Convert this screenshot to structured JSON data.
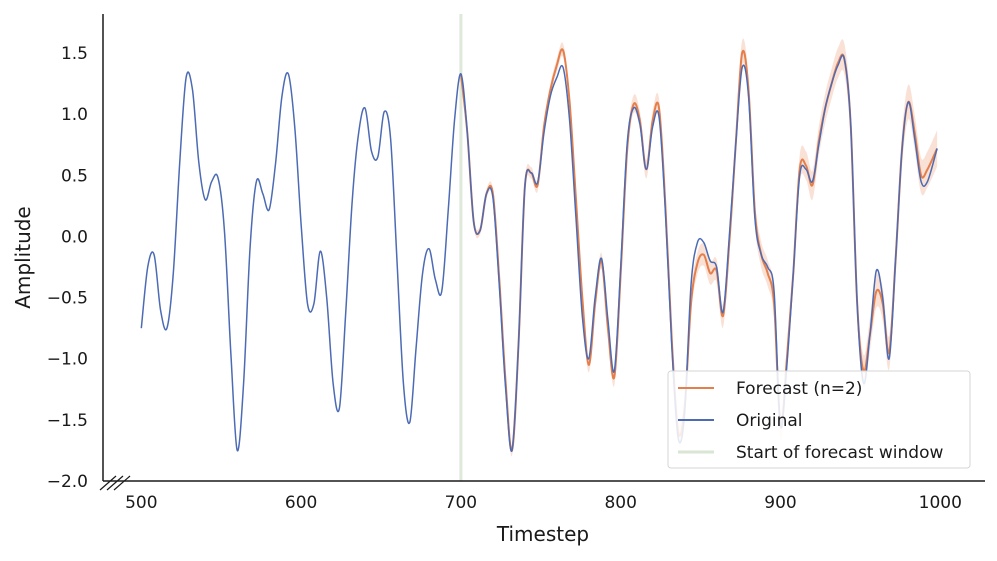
{
  "chart_data": {
    "type": "line",
    "xlabel": "Timestep",
    "ylabel": "Amplitude",
    "xlim": [
      476,
      1028
    ],
    "ylim": [
      -2.0,
      1.82
    ],
    "xticks": [
      500,
      600,
      700,
      800,
      900,
      1000
    ],
    "yticks": [
      1.5,
      1.0,
      0.5,
      0.0,
      -0.5,
      -1.0,
      -1.5,
      -2.0
    ],
    "ytick_labels": [
      "1.5",
      "1.0",
      "0.5",
      "0.0",
      "−0.5",
      "−1.0",
      "−1.5",
      "−2.0"
    ],
    "legend_position": "lower-right",
    "grid": false,
    "forecast_start": 700,
    "series": [
      {
        "name": "Forecast (n=2)",
        "color": "#e47f4c",
        "band_color": "#f6c9b3",
        "x": [
          700,
          704,
          708,
          712,
          716,
          720,
          724,
          728,
          732,
          736,
          740,
          744,
          748,
          752,
          756,
          760,
          764,
          768,
          772,
          776,
          780,
          784,
          788,
          792,
          796,
          800,
          804,
          808,
          812,
          816,
          820,
          824,
          828,
          832,
          836,
          840,
          844,
          848,
          852,
          856,
          860,
          864,
          868,
          872,
          876,
          880,
          884,
          888,
          892,
          896,
          900,
          904,
          908,
          912,
          916,
          920,
          924,
          928,
          932,
          936,
          940,
          944,
          948,
          952,
          956,
          960,
          964,
          968,
          972,
          976,
          980,
          984,
          988,
          992,
          998
        ],
        "y": [
          1.33,
          0.85,
          0.12,
          0.05,
          0.35,
          0.35,
          -0.35,
          -1.2,
          -1.75,
          -0.9,
          0.4,
          0.52,
          0.42,
          0.9,
          1.2,
          1.4,
          1.52,
          1.1,
          0.3,
          -0.5,
          -1.05,
          -0.55,
          -0.2,
          -0.75,
          -1.15,
          -0.3,
          0.7,
          1.08,
          0.95,
          0.55,
          0.95,
          1.05,
          0.25,
          -0.85,
          -1.6,
          -1.4,
          -0.55,
          -0.22,
          -0.15,
          -0.3,
          -0.28,
          -0.65,
          -0.05,
          0.75,
          1.5,
          1.2,
          0.2,
          -0.15,
          -0.3,
          -0.55,
          -1.55,
          -1.0,
          -0.3,
          0.55,
          0.58,
          0.42,
          0.78,
          1.05,
          1.25,
          1.42,
          1.45,
          0.9,
          -0.55,
          -1.1,
          -0.8,
          -0.45,
          -0.55,
          -0.95,
          -0.2,
          0.7,
          1.1,
          0.85,
          0.5,
          0.55,
          0.72
        ]
      },
      {
        "name": "Original",
        "color": "#4c6bb4",
        "x": [
          500,
          504,
          508,
          512,
          516,
          520,
          524,
          528,
          532,
          536,
          540,
          544,
          548,
          552,
          556,
          560,
          564,
          568,
          572,
          576,
          580,
          584,
          588,
          592,
          596,
          600,
          604,
          608,
          612,
          616,
          620,
          624,
          628,
          632,
          636,
          640,
          644,
          648,
          652,
          656,
          660,
          664,
          668,
          672,
          676,
          680,
          684,
          688,
          692,
          696,
          700,
          704,
          708,
          712,
          716,
          720,
          724,
          728,
          732,
          736,
          740,
          744,
          748,
          752,
          756,
          760,
          764,
          768,
          772,
          776,
          780,
          784,
          788,
          792,
          796,
          800,
          804,
          808,
          812,
          816,
          820,
          824,
          828,
          832,
          836,
          840,
          844,
          848,
          852,
          856,
          860,
          864,
          868,
          872,
          876,
          880,
          884,
          888,
          892,
          896,
          900,
          904,
          908,
          912,
          916,
          920,
          924,
          928,
          932,
          936,
          940,
          944,
          948,
          952,
          956,
          960,
          964,
          968,
          972,
          976,
          980,
          984,
          988,
          992,
          998
        ],
        "y": [
          -0.75,
          -0.25,
          -0.15,
          -0.6,
          -0.75,
          -0.3,
          0.6,
          1.3,
          1.2,
          0.6,
          0.3,
          0.45,
          0.48,
          0.05,
          -0.95,
          -1.75,
          -1.2,
          -0.1,
          0.45,
          0.35,
          0.22,
          0.6,
          1.15,
          1.33,
          0.9,
          0.1,
          -0.55,
          -0.55,
          -0.12,
          -0.5,
          -1.2,
          -1.4,
          -0.6,
          0.3,
          0.85,
          1.05,
          0.7,
          0.65,
          1.02,
          0.8,
          -0.2,
          -1.2,
          -1.52,
          -0.9,
          -0.3,
          -0.1,
          -0.35,
          -0.45,
          0.2,
          0.95,
          1.33,
          0.85,
          0.12,
          0.05,
          0.35,
          0.32,
          -0.4,
          -1.25,
          -1.75,
          -0.9,
          0.4,
          0.52,
          0.44,
          0.85,
          1.15,
          1.3,
          1.38,
          0.95,
          0.15,
          -0.65,
          -1.0,
          -0.5,
          -0.18,
          -0.68,
          -1.1,
          -0.25,
          0.75,
          1.05,
          0.92,
          0.55,
          0.9,
          0.98,
          0.2,
          -0.9,
          -1.65,
          -1.45,
          -0.4,
          -0.05,
          -0.05,
          -0.2,
          -0.25,
          -0.62,
          0.0,
          0.75,
          1.38,
          1.15,
          0.15,
          -0.15,
          -0.25,
          -0.45,
          -1.55,
          -1.05,
          -0.3,
          0.5,
          0.55,
          0.45,
          0.75,
          1.05,
          1.25,
          1.4,
          1.45,
          0.9,
          -0.55,
          -1.2,
          -0.8,
          -0.28,
          -0.5,
          -1.0,
          -0.2,
          0.7,
          1.1,
          0.8,
          0.45,
          0.45,
          0.72
        ]
      },
      {
        "name": "Start of forecast window",
        "color": "#c9dcc3"
      }
    ]
  }
}
